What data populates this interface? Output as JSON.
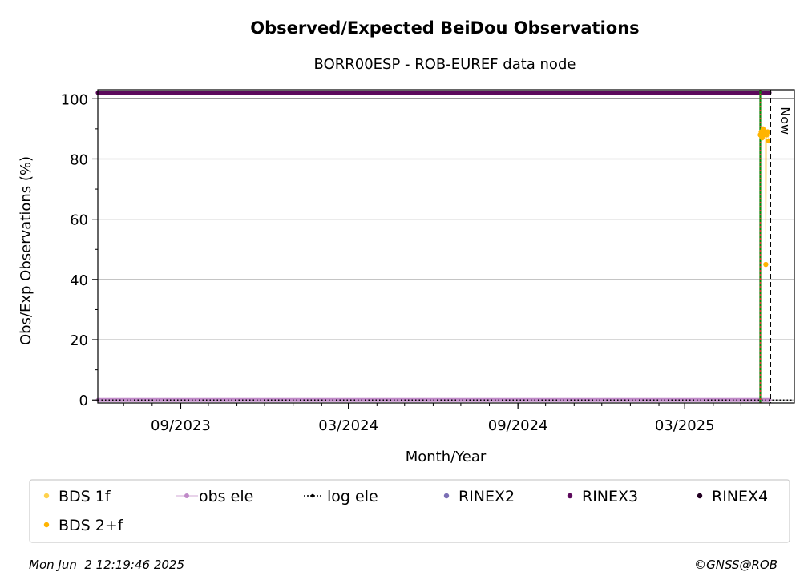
{
  "chart_data": {
    "type": "scatter",
    "title": "Observed/Expected BeiDou Observations",
    "subtitle": "BORR00ESP - ROB-EUREF data node",
    "xlabel": "Month/Year",
    "ylabel": "Obs/Exp Observations (%)",
    "x_ticks": [
      "09/2023",
      "03/2024",
      "09/2024",
      "03/2025"
    ],
    "y_ticks": [
      "0",
      "20",
      "40",
      "60",
      "80",
      "100"
    ],
    "ylim": [
      -1,
      103
    ],
    "xlim": [
      "2023-06-03",
      "2025-06-28"
    ],
    "grid": "horizontal",
    "legend_position": "bottom",
    "now_label": "Now",
    "now_date": "2025-06-02",
    "vline_date": "2025-05-22",
    "series": [
      {
        "name": "BDS 1f",
        "color": "#ffd24d",
        "points": []
      },
      {
        "name": "BDS 2+f",
        "color": "#ffb400",
        "points": [
          {
            "x": "2025-05-22",
            "y": 88
          },
          {
            "x": "2025-05-23",
            "y": 89
          },
          {
            "x": "2025-05-24",
            "y": 87
          },
          {
            "x": "2025-05-25",
            "y": 90
          },
          {
            "x": "2025-05-26",
            "y": 88
          },
          {
            "x": "2025-05-27",
            "y": 89
          },
          {
            "x": "2025-05-28",
            "y": 45
          },
          {
            "x": "2025-05-29",
            "y": 88
          },
          {
            "x": "2025-05-30",
            "y": 89
          },
          {
            "x": "2025-05-31",
            "y": 86
          }
        ]
      },
      {
        "name": "obs ele",
        "color": "#c08ac8",
        "start": "2023-06-03",
        "end": "2025-06-01",
        "y": 0
      },
      {
        "name": "log ele",
        "color": "#000000",
        "start": "2023-06-03",
        "end": "2025-06-28",
        "y": 0
      },
      {
        "name": "RINEX2",
        "color": "#7b6fb5",
        "points": []
      },
      {
        "name": "RINEX3",
        "color": "#5c0a5c",
        "start": "2023-06-03",
        "end": "2025-06-01",
        "y": 102
      },
      {
        "name": "RINEX4",
        "color": "#220022",
        "points": []
      }
    ]
  },
  "footer": {
    "timestamp": "Mon Jun  2 12:19:46 2025",
    "copyright": "©GNSS@ROB"
  }
}
